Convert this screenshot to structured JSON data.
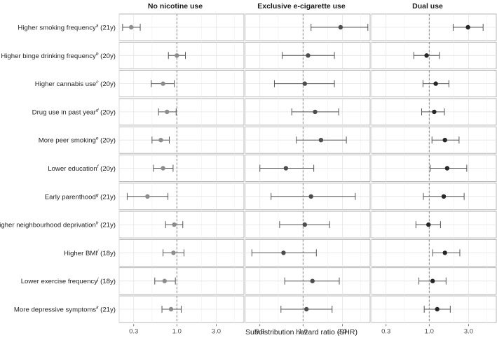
{
  "chart_data": {
    "type": "forest",
    "xlabel": "Subdistribution hazard ratio (SHR)",
    "xscale": "log",
    "xlim": [
      0.2,
      6.5
    ],
    "xticks": [
      0.3,
      1.0,
      3.0
    ],
    "xtick_labels": [
      "0.3",
      "1.0",
      "3.0"
    ],
    "reference_line": 1.0,
    "grid": true,
    "panels": [
      "No nicotine use",
      "Exclusive e-cigarette use",
      "Dual use"
    ],
    "rows": [
      {
        "label": "Higher smoking frequency",
        "sup": "a",
        "age": "(21y)"
      },
      {
        "label": "Higher binge drinking frequency",
        "sup": "b",
        "age": "(20y)"
      },
      {
        "label": "Higher cannabis use",
        "sup": "c",
        "age": "(20y)"
      },
      {
        "label": "Drug use in past year",
        "sup": "d",
        "age": "(20y)"
      },
      {
        "label": "More peer smoking",
        "sup": "e",
        "age": "(20y)"
      },
      {
        "label": "Lower education",
        "sup": "f",
        "age": "(20y)"
      },
      {
        "label": "Early parenthood",
        "sup": "g",
        "age": "(21y)"
      },
      {
        "label": "Higher neighbourhood deprivation",
        "sup": "h",
        "age": "(21y)"
      },
      {
        "label": "Higher BMI",
        "sup": "i",
        "age": "(18y)"
      },
      {
        "label": "Lower exercise frequency",
        "sup": "j",
        "age": "(18y)"
      },
      {
        "label": "More depressive symptoms",
        "sup": "k",
        "age": "(21y)"
      }
    ],
    "series": [
      {
        "panel": "No nicotine use",
        "color": "#8c8c8c",
        "estimates": [
          0.28,
          1.0,
          0.68,
          0.76,
          0.64,
          0.68,
          0.44,
          0.93,
          0.91,
          0.71,
          0.85
        ],
        "lower": [
          0.22,
          0.79,
          0.49,
          0.6,
          0.5,
          0.52,
          0.25,
          0.73,
          0.68,
          0.54,
          0.66
        ],
        "upper": [
          0.36,
          1.27,
          0.93,
          0.98,
          0.81,
          0.9,
          0.78,
          1.18,
          1.22,
          0.96,
          1.13
        ]
      },
      {
        "panel": "Exclusive e-cigarette use",
        "color": "#4d4d4d",
        "estimates": [
          2.85,
          1.15,
          1.05,
          1.4,
          1.65,
          0.62,
          1.25,
          1.05,
          0.58,
          1.3,
          1.1
        ],
        "lower": [
          1.25,
          0.56,
          0.45,
          0.73,
          0.83,
          0.3,
          0.41,
          0.52,
          0.24,
          0.6,
          0.54
        ],
        "upper": [
          6.1,
          2.4,
          2.4,
          2.7,
          3.35,
          1.35,
          4.3,
          2.1,
          1.45,
          2.75,
          2.25
        ]
      },
      {
        "panel": "Dual use",
        "color": "#262626",
        "estimates": [
          2.95,
          0.93,
          1.2,
          1.15,
          1.55,
          1.65,
          1.5,
          0.98,
          1.55,
          1.1,
          1.25
        ],
        "lower": [
          1.95,
          0.65,
          0.84,
          0.81,
          1.08,
          1.03,
          0.85,
          0.69,
          1.1,
          0.75,
          0.87
        ],
        "upper": [
          4.5,
          1.33,
          1.73,
          1.53,
          2.3,
          2.85,
          2.65,
          1.37,
          2.35,
          1.6,
          1.8
        ]
      }
    ]
  }
}
